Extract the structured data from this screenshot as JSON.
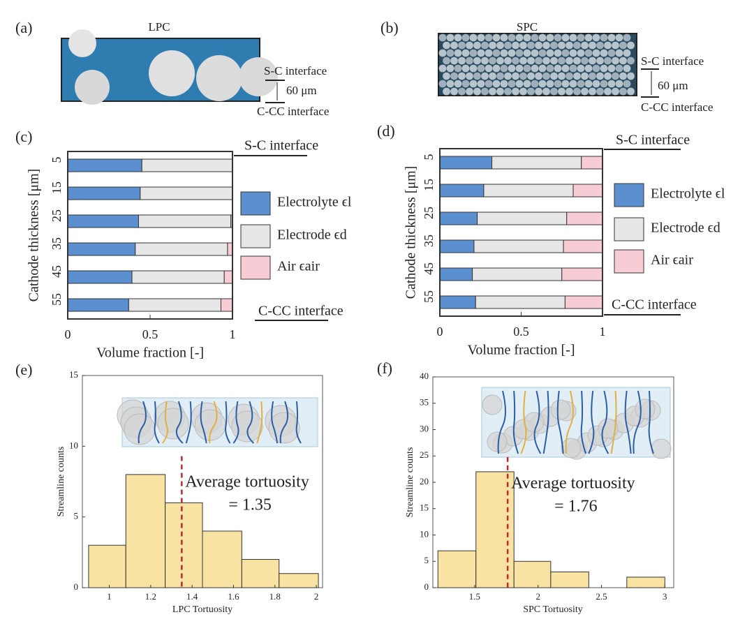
{
  "figure": {
    "panels": [
      "(a)",
      "(b)"
    ],
    "images": [
      {
        "title": "LPC",
        "top": "S-C interface",
        "scale": "60 μm",
        "bottom": "C-CC interface"
      },
      {
        "title": "SPC",
        "top": "S-C interface",
        "scale": "60 μm",
        "bottom": "C-CC interface"
      }
    ]
  },
  "chart_data": [
    {
      "type": "hbar-stacked",
      "label": "(c)",
      "categories": [
        5,
        15,
        25,
        35,
        45,
        55
      ],
      "series": [
        {
          "name": "Electrolyte ϵl",
          "color": "#5b8fd0",
          "values": [
            0.45,
            0.44,
            0.43,
            0.41,
            0.39,
            0.37
          ]
        },
        {
          "name": "Electrode ϵd",
          "color": "#e6e6e6",
          "values": [
            0.55,
            0.56,
            0.56,
            0.56,
            0.56,
            0.56
          ]
        },
        {
          "name": "Air ϵair",
          "color": "#f8ccd4",
          "values": [
            0,
            0,
            0.01,
            0.03,
            0.05,
            0.07
          ]
        }
      ],
      "xlim": [
        0,
        1
      ],
      "xticks": [
        0,
        0.5,
        1
      ],
      "xlabel": "Volume fraction [-]",
      "ylabel": "Cathode thickness [μm]",
      "annotations": [
        "S-C interface",
        "C-CC interface"
      ]
    },
    {
      "type": "hbar-stacked",
      "label": "(d)",
      "categories": [
        5,
        15,
        25,
        35,
        45,
        55
      ],
      "series": [
        {
          "name": "Electrolyte ϵl",
          "color": "#5b8fd0",
          "values": [
            0.32,
            0.27,
            0.23,
            0.21,
            0.2,
            0.22
          ]
        },
        {
          "name": "Electrode ϵd",
          "color": "#e6e6e6",
          "values": [
            0.55,
            0.55,
            0.55,
            0.55,
            0.55,
            0.55
          ]
        },
        {
          "name": "Air ϵair",
          "color": "#f8ccd4",
          "values": [
            0.13,
            0.18,
            0.22,
            0.24,
            0.25,
            0.23
          ]
        }
      ],
      "xlim": [
        0,
        1
      ],
      "xticks": [
        0,
        0.5,
        1
      ],
      "xlabel": "Volume fraction [-]",
      "ylabel": "Cathode thickness [μm]",
      "annotations": [
        "S-C interface",
        "C-CC interface"
      ]
    },
    {
      "type": "histogram",
      "label": "(e)",
      "bins": [
        0.9,
        1.08,
        1.27,
        1.45,
        1.64,
        1.82,
        2.01
      ],
      "values": [
        3,
        8,
        6,
        4,
        2,
        1
      ],
      "color": "#f9e3a3",
      "xlim": [
        0.87,
        2.03
      ],
      "ylim": [
        0,
        15
      ],
      "xticks": [
        1,
        1.2,
        1.4,
        1.6,
        1.8,
        2
      ],
      "yticks": [
        0,
        5,
        10,
        15
      ],
      "xlabel": "LPC Tortuosity",
      "ylabel": "Streamline counts",
      "mean": 1.35,
      "mean_color": "#c0282d",
      "mean_labels": [
        "Average tortuosity",
        "= 1.35"
      ]
    },
    {
      "type": "histogram",
      "label": "(f)",
      "bins": [
        1.21,
        1.51,
        1.81,
        2.1,
        2.4,
        2.7,
        3.0
      ],
      "values": [
        7,
        22,
        5,
        3,
        0,
        2
      ],
      "color": "#f9e3a3",
      "xlim": [
        1.17,
        3.07
      ],
      "ylim": [
        0,
        40
      ],
      "xticks": [
        1.5,
        2,
        2.5,
        3
      ],
      "yticks": [
        0,
        5,
        10,
        15,
        20,
        25,
        30,
        35,
        40
      ],
      "xlabel": "SPC Tortuosity",
      "ylabel": "Streamline counts",
      "mean": 1.76,
      "mean_color": "#c0282d",
      "mean_labels": [
        "Average tortuosity",
        "= 1.76"
      ]
    }
  ]
}
